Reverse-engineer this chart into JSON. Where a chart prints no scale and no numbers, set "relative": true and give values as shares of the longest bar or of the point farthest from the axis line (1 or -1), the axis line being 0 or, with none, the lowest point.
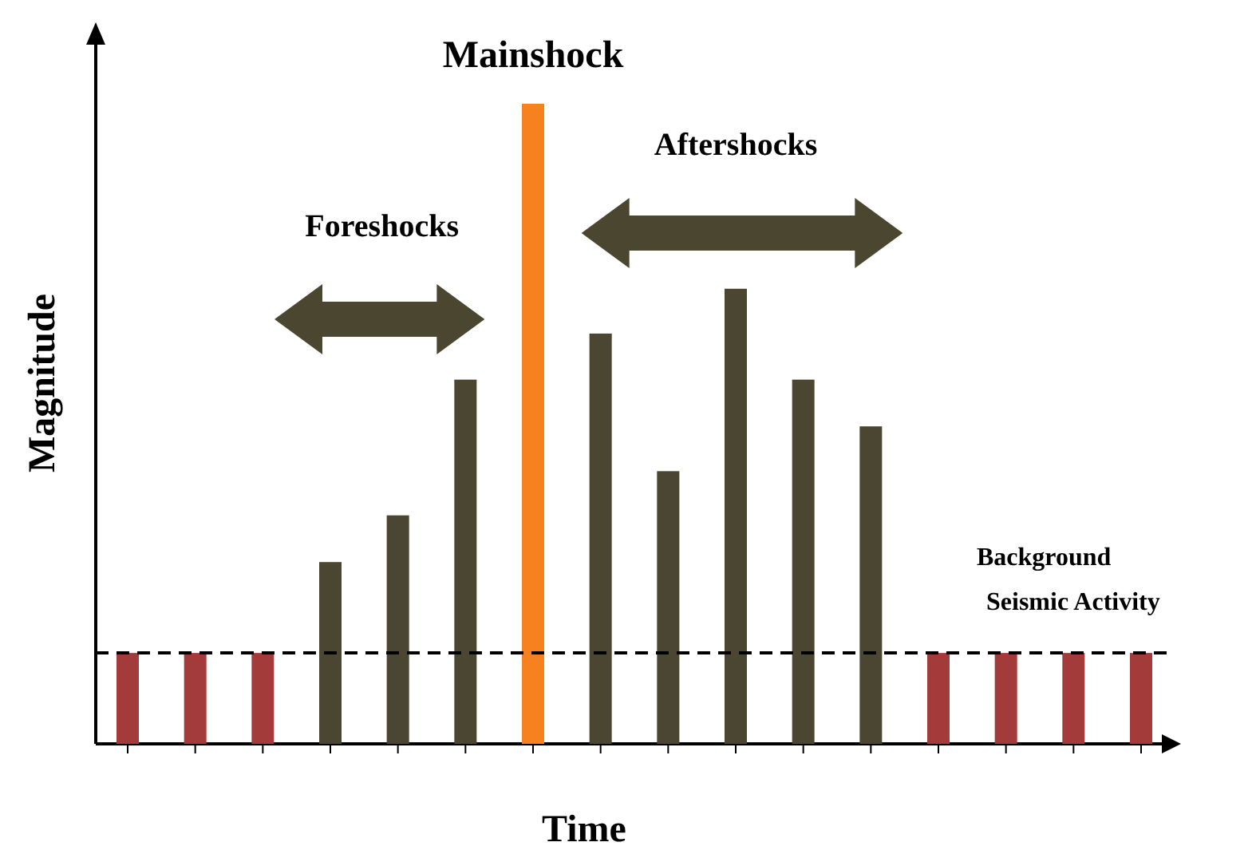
{
  "chart_data": {
    "type": "bar",
    "relative": true,
    "xlabel": "Time",
    "ylabel": "Magnitude",
    "categories": [
      null,
      null,
      null,
      null,
      null,
      null,
      null,
      null,
      null,
      null,
      null,
      null,
      null,
      null,
      null,
      null
    ],
    "values": [
      0.142,
      0.142,
      0.142,
      0.284,
      0.357,
      0.569,
      1,
      0.641,
      0.426,
      0.711,
      0.569,
      0.496,
      0.142,
      0.142,
      0.142,
      0.142
    ],
    "colors": [
      "#a33b3b",
      "#a33b3b",
      "#a33b3b",
      "#4b4632",
      "#4b4632",
      "#4b4632",
      "#f5821f",
      "#4b4632",
      "#4b4632",
      "#4b4632",
      "#4b4632",
      "#4b4632",
      "#a33b3b",
      "#a33b3b",
      "#a33b3b",
      "#a33b3b"
    ],
    "ref_lines": [
      {
        "axis": "y",
        "value": 0.142,
        "line_style": "dashed",
        "color": "#000000"
      }
    ],
    "annotations": [
      "Mainshock",
      "Foreshocks",
      "Aftershocks",
      "Background Seismic Activity"
    ]
  }
}
